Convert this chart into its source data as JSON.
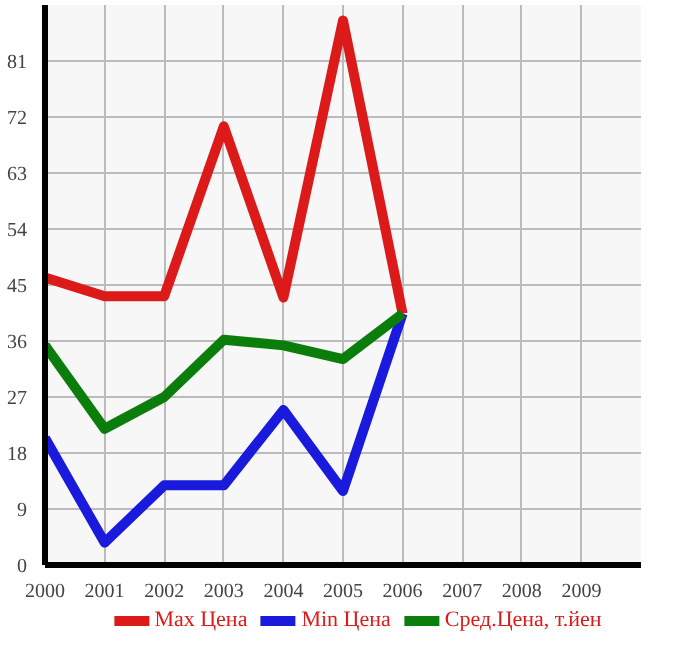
{
  "chart_data": {
    "type": "line",
    "x": [
      2000,
      2001,
      2002,
      2003,
      2004,
      2005,
      2006
    ],
    "series": [
      {
        "name": "Max Цена",
        "color": "#dd1a1a",
        "values": [
          46.2,
          43.2,
          43.2,
          70.5,
          43,
          87.5,
          40.4
        ]
      },
      {
        "name": "Min Цена",
        "color": "#1a1add",
        "values": [
          20.4,
          3.6,
          12.8,
          12.8,
          24.9,
          11.9,
          40.4
        ]
      },
      {
        "name": "Сред.Цена, т.йен",
        "color": "#0a7d0a",
        "values": [
          35.3,
          21.9,
          27,
          36.2,
          35.3,
          33.1,
          40.4
        ]
      }
    ],
    "xlim": [
      2000,
      2010
    ],
    "xticks": [
      2000,
      2001,
      2002,
      2003,
      2004,
      2005,
      2006,
      2007,
      2008,
      2009
    ],
    "ylim": [
      0,
      90
    ],
    "yticks": [
      0,
      9,
      18,
      27,
      36,
      45,
      54,
      63,
      72,
      81
    ],
    "grid": true,
    "legend": "bottom",
    "marker": "none",
    "line_style": "solid"
  }
}
